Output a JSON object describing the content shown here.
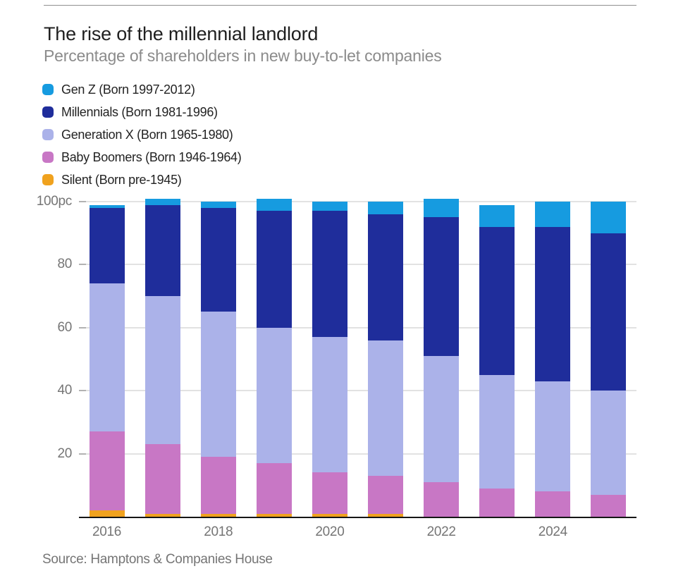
{
  "header": {
    "title": "The rise of the millennial landlord",
    "subtitle": "Percentage of shareholders in new buy-to-let companies"
  },
  "legend": {
    "items": [
      {
        "key": "gen-z",
        "label": "Gen Z (Born 1997-2012)",
        "color": "#169BE0"
      },
      {
        "key": "millennials",
        "label": "Millennials (Born 1981-1996)",
        "color": "#1F2D9B"
      },
      {
        "key": "gen-x",
        "label": "Generation X (Born 1965-1980)",
        "color": "#ABB2E9"
      },
      {
        "key": "baby-boomers",
        "label": "Baby Boomers (Born 1946-1964)",
        "color": "#C877C5"
      },
      {
        "key": "silent",
        "label": "Silent (Born pre-1945)",
        "color": "#F0A21E"
      }
    ]
  },
  "chart_data": {
    "type": "bar",
    "variant": "stacked",
    "title": "The rise of the millennial landlord",
    "subtitle": "Percentage of shareholders in new buy-to-let companies",
    "unit": "percent",
    "categories": [
      "2016",
      "2017",
      "2018",
      "2019",
      "2020",
      "2021",
      "2022",
      "2023",
      "2024",
      "2025"
    ],
    "series": [
      {
        "name": "Silent (Born pre-1945)",
        "color": "#F0A21E",
        "values": [
          2,
          1,
          1,
          1,
          1,
          1,
          0,
          0,
          0,
          0
        ]
      },
      {
        "name": "Baby Boomers (Born 1946-1964)",
        "color": "#C877C5",
        "values": [
          25,
          22,
          18,
          16,
          13,
          12,
          11,
          9,
          8,
          7
        ]
      },
      {
        "name": "Generation X (Born 1965-1980)",
        "color": "#ABB2E9",
        "values": [
          47,
          47,
          46,
          43,
          43,
          43,
          40,
          36,
          35,
          33
        ]
      },
      {
        "name": "Millennials (Born 1981-1996)",
        "color": "#1F2D9B",
        "values": [
          24,
          29,
          33,
          37,
          40,
          40,
          44,
          47,
          49,
          50
        ]
      },
      {
        "name": "Gen Z (Born 1997-2012)",
        "color": "#169BE0",
        "values": [
          1,
          2,
          2,
          4,
          3,
          4,
          6,
          7,
          8,
          10
        ]
      }
    ],
    "stack_order": "bottom-to-top",
    "y_axis": {
      "ylim": [
        0,
        101
      ],
      "gridlines": true,
      "ticks": [
        {
          "value": 20,
          "label": "20"
        },
        {
          "value": 40,
          "label": "40"
        },
        {
          "value": 60,
          "label": "60"
        },
        {
          "value": 80,
          "label": "80"
        },
        {
          "value": 100,
          "label": "100pc"
        }
      ]
    },
    "x_axis": {
      "tick_labels": [
        {
          "slot": 0,
          "label": "2016"
        },
        {
          "slot": 2,
          "label": "2018"
        },
        {
          "slot": 4,
          "label": "2020"
        },
        {
          "slot": 6,
          "label": "2022"
        },
        {
          "slot": 8,
          "label": "2024"
        }
      ]
    },
    "legend_position": "top-left"
  },
  "footer": {
    "source": "Source: Hamptons & Companies House"
  }
}
